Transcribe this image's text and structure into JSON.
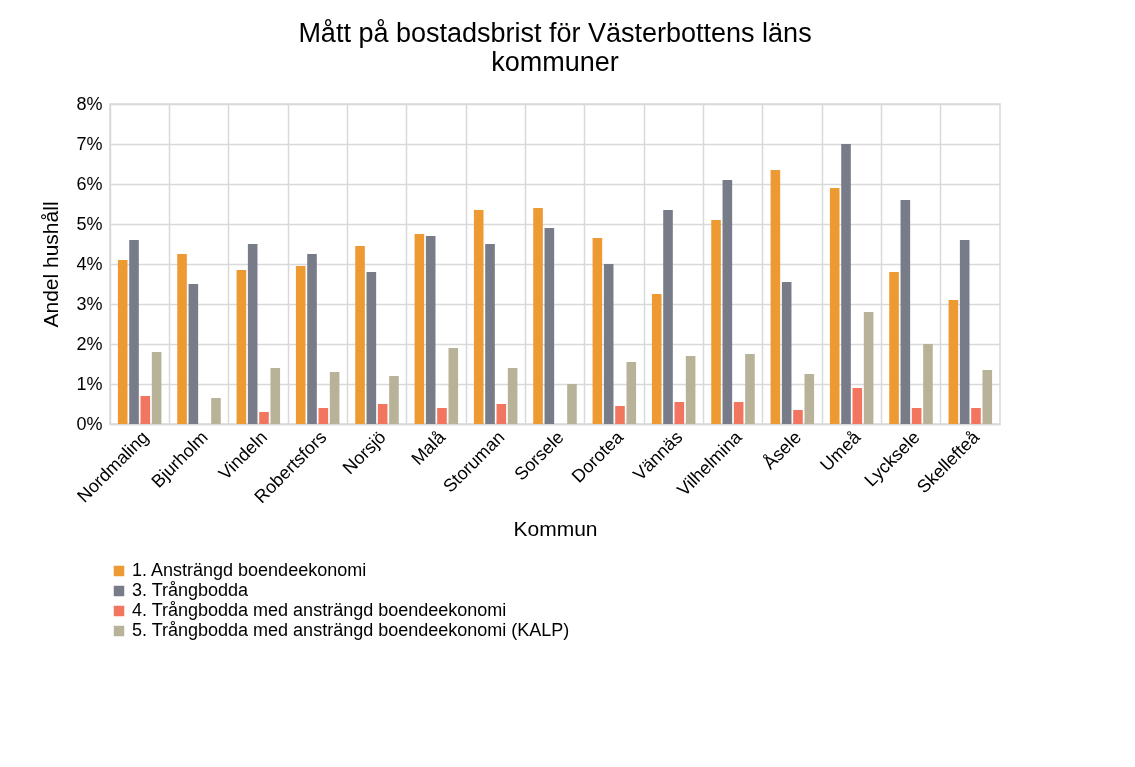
{
  "chart_data": {
    "type": "bar",
    "title": "Mått på bostadsbrist för Västerbottens läns kommuner",
    "xlabel": "Kommun",
    "ylabel": "Andel hushåll",
    "categories": [
      "Nordmaling",
      "Bjurholm",
      "Vindeln",
      "Robertsfors",
      "Norsjö",
      "Malå",
      "Storuman",
      "Sorsele",
      "Dorotea",
      "Vännäs",
      "Vilhelmina",
      "Åsele",
      "Umeå",
      "Lycksele",
      "Skellefteå"
    ],
    "series": [
      {
        "name": "1. Ansträngd boendeekonomi",
        "color": "#ed9a33",
        "values": [
          4.1,
          4.25,
          3.85,
          3.95,
          4.45,
          4.75,
          5.35,
          5.4,
          4.65,
          3.25,
          5.1,
          6.35,
          5.9,
          3.8,
          3.1
        ]
      },
      {
        "name": "3. Trångbodda",
        "color": "#787b88",
        "values": [
          4.6,
          3.5,
          4.5,
          4.25,
          3.8,
          4.7,
          4.5,
          4.9,
          4.0,
          5.35,
          6.1,
          3.55,
          7.0,
          5.6,
          4.6
        ]
      },
      {
        "name": "4. Trångbodda med ansträngd boendeekonomi",
        "color": "#f27560",
        "values": [
          0.7,
          null,
          0.3,
          0.4,
          0.5,
          0.4,
          0.5,
          null,
          0.45,
          0.55,
          0.55,
          0.35,
          0.9,
          0.4,
          0.4
        ]
      },
      {
        "name": "5. Trångbodda med ansträngd boendeekonomi (KALP)",
        "color": "#b8b398",
        "values": [
          1.8,
          0.65,
          1.4,
          1.3,
          1.2,
          1.9,
          1.4,
          1.0,
          1.55,
          1.7,
          1.75,
          1.25,
          2.8,
          2.0,
          1.35
        ]
      }
    ],
    "ylim": [
      0,
      8
    ],
    "yticks": [
      {
        "value": 0,
        "label": "0%"
      },
      {
        "value": 1,
        "label": "1%"
      },
      {
        "value": 2,
        "label": "2%"
      },
      {
        "value": 3,
        "label": "3%"
      },
      {
        "value": 4,
        "label": "4%"
      },
      {
        "value": 5,
        "label": "5%"
      },
      {
        "value": 6,
        "label": "6%"
      },
      {
        "value": 7,
        "label": "7%"
      },
      {
        "value": 8,
        "label": "8%"
      }
    ],
    "grid": true,
    "legend": "bottom"
  }
}
